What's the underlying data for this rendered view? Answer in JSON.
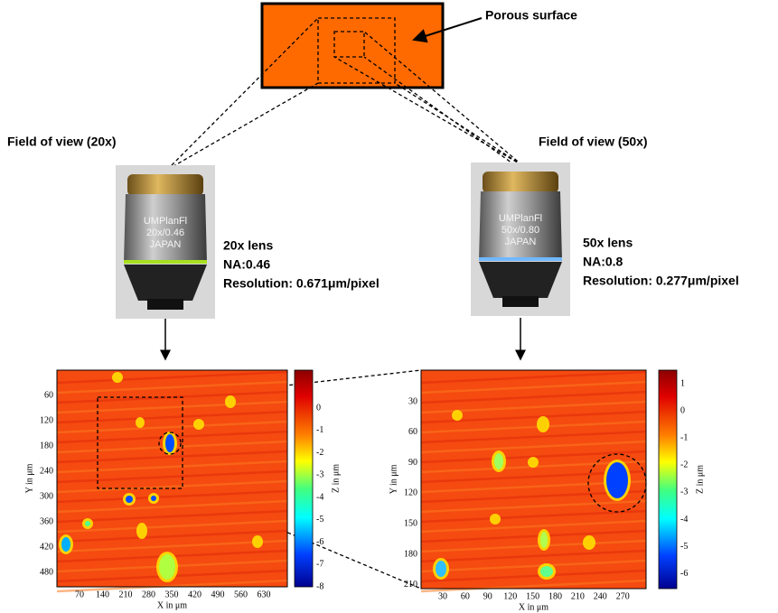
{
  "top": {
    "label": "Porous surface"
  },
  "lenses": [
    {
      "field_of_view": "Field of view (20x)",
      "engraving": [
        "UMPlanFl",
        "20x/0.46",
        "JAPAN"
      ],
      "specs": [
        "20x lens",
        "NA:0.46",
        "Resolution: 0.671μm/pixel"
      ]
    },
    {
      "field_of_view": "Field of view (50x)",
      "engraving": [
        "UMPlanFl",
        "50x/0.80",
        "JAPAN"
      ],
      "specs": [
        "50x lens",
        "NA:0.8",
        "Resolution: 0.277μm/pixel"
      ]
    }
  ],
  "maps": [
    {
      "x_label": "X in μm",
      "y_label": "Y in μm",
      "z_label": "Z in μm",
      "xticks": [
        70,
        140,
        210,
        280,
        350,
        420,
        490,
        560,
        630
      ],
      "yticks": [
        60,
        120,
        180,
        240,
        300,
        360,
        420,
        480
      ],
      "colorbar_ticks": [
        0,
        -1,
        -2,
        -3,
        -4,
        -5,
        -6,
        -7,
        -8
      ]
    },
    {
      "x_label": "X in μm",
      "y_label": "Y in μm",
      "z_label": "Z in μm",
      "xticks": [
        30,
        60,
        90,
        120,
        150,
        180,
        210,
        240,
        270
      ],
      "yticks": [
        30,
        60,
        90,
        120,
        150,
        180,
        210
      ],
      "colorbar_ticks": [
        1,
        0,
        -1,
        -2,
        -3,
        -4,
        -5,
        -6
      ]
    }
  ]
}
